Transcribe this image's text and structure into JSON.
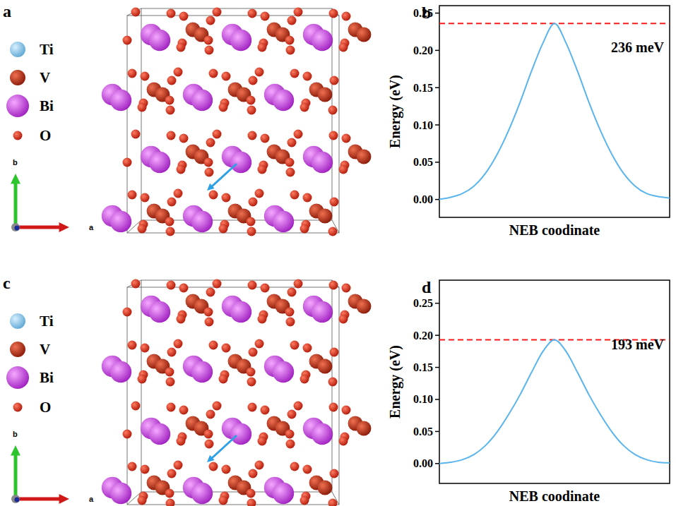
{
  "species": [
    "Ti",
    "V",
    "Bi",
    "O"
  ],
  "structure_panels": [
    {
      "letter": "a",
      "axis_labels": [
        "b",
        "a"
      ],
      "dopant": false
    },
    {
      "letter": "c",
      "axis_labels": [
        "b",
        "a"
      ],
      "dopant": true
    }
  ],
  "chart_data": [
    {
      "type": "line",
      "letter": "b",
      "ylabel": "Energy (eV)",
      "xlabel": "NEB coodinate",
      "x": [
        0,
        0.05,
        0.1,
        0.15,
        0.2,
        0.25,
        0.3,
        0.35,
        0.4,
        0.45,
        0.5,
        0.55,
        0.6,
        0.65,
        0.7,
        0.75,
        0.8,
        0.85,
        0.9,
        0.95,
        1
      ],
      "values": [
        0,
        0.003,
        0.008,
        0.018,
        0.035,
        0.06,
        0.092,
        0.13,
        0.172,
        0.21,
        0.236,
        0.21,
        0.172,
        0.13,
        0.092,
        0.06,
        0.035,
        0.018,
        0.008,
        0.004,
        0.002
      ],
      "color": "#5ab4ee",
      "xlim": [
        0,
        1
      ],
      "ylim": [
        -0.024,
        0.26
      ],
      "yticks": [
        {
          "value": 0,
          "label": "0.00"
        },
        {
          "value": 0.05,
          "label": "0.05"
        },
        {
          "value": 0.1,
          "label": "0.10"
        },
        {
          "value": 0.15,
          "label": "0.15"
        },
        {
          "value": 0.2,
          "label": "0.20"
        },
        {
          "value": 0.25,
          "label": "0.25"
        }
      ],
      "tick_labels": "y",
      "barrier": 0.236,
      "annotation": "236 meV"
    },
    {
      "type": "line",
      "letter": "d",
      "ylabel": "Energy (eV)",
      "xlabel": "NEB coodinate",
      "x": [
        0,
        0.05,
        0.1,
        0.15,
        0.2,
        0.25,
        0.3,
        0.35,
        0.4,
        0.45,
        0.5,
        0.55,
        0.6,
        0.65,
        0.7,
        0.75,
        0.8,
        0.85,
        0.9,
        0.95,
        1
      ],
      "values": [
        0,
        0.002,
        0.006,
        0.014,
        0.028,
        0.049,
        0.076,
        0.107,
        0.142,
        0.175,
        0.193,
        0.175,
        0.142,
        0.107,
        0.076,
        0.049,
        0.028,
        0.014,
        0.006,
        0.002,
        0.001
      ],
      "color": "#5ab4ee",
      "xlim": [
        0,
        1
      ],
      "ylim": [
        -0.031,
        0.286
      ],
      "yticks": [
        {
          "value": 0,
          "label": "0.00"
        },
        {
          "value": 0.05,
          "label": "0.05"
        },
        {
          "value": 0.1,
          "label": "0.10"
        },
        {
          "value": 0.15,
          "label": "0.15"
        },
        {
          "value": 0.2,
          "label": "0.20"
        },
        {
          "value": 0.25,
          "label": "0.25"
        }
      ],
      "tick_labels": "y",
      "barrier": 0.193,
      "annotation": "193 meV"
    }
  ]
}
